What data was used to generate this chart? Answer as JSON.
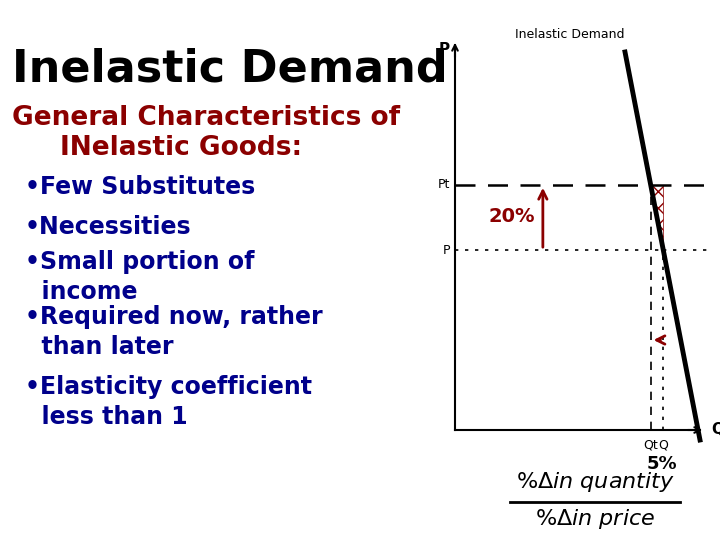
{
  "bg_color": "#ffffff",
  "title_text": "Inelastic Demand",
  "title_color": "#000000",
  "title_fontsize": 32,
  "heading1": "General Characteristics of",
  "heading2": "INelastic Goods:",
  "heading_color": "#8B0000",
  "heading_fontsize": 19,
  "bullets": [
    "•Few Substitutes",
    "•Necessities",
    "•Small portion of\nincome",
    "•Required now, rather\nthan later",
    "•Elasticity coefficient\nless than 1"
  ],
  "bullet_color": "#00008B",
  "bullet_fontsize": 17,
  "chart_title": "Inelastic Demand",
  "chart_title_fontsize": 9,
  "p_axis": "P",
  "q_axis": "Q",
  "pt_label": "Pt",
  "p_label": "P",
  "qt_label": "Qt",
  "q_label": "Q",
  "pct_20": "20%",
  "pct_20_color": "#8B0000",
  "pct_5": "5%",
  "demand_color": "#000000",
  "arrow_color": "#8B0000",
  "hatch_color": "#8B0000",
  "dashed_color": "#000000",
  "formula_color": "#000000",
  "formula_fontsize": 16
}
